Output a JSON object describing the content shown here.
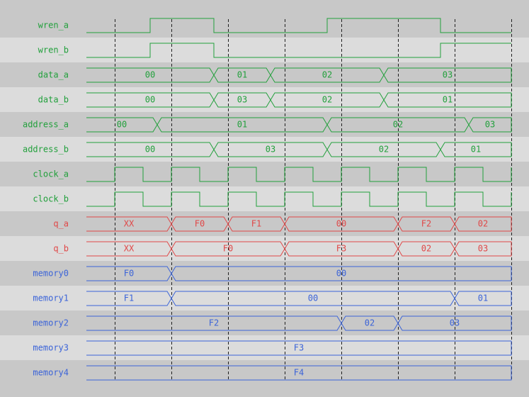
{
  "colors": {
    "control": "#22a03c",
    "output": "#e04848",
    "memory": "#3c64d8",
    "band_dark": "#c8c8c8",
    "band_light": "#dcdcdc",
    "grid": "#202020"
  },
  "time_end": 15,
  "gridlines": [
    1,
    3,
    5,
    7,
    9,
    11,
    13,
    15
  ],
  "signals": [
    {
      "name": "wren_a",
      "kind": "bit",
      "color": "control",
      "init": 0,
      "edges": [
        2.25,
        4.5,
        8.5,
        12.5
      ]
    },
    {
      "name": "wren_b",
      "kind": "bit",
      "color": "control",
      "init": 0,
      "edges": [
        2.25,
        4.5,
        12.5
      ]
    },
    {
      "name": "data_a",
      "kind": "bus",
      "color": "control",
      "segments": [
        {
          "start": 0,
          "end": 4.5,
          "value": "00"
        },
        {
          "start": 4.5,
          "end": 6.5,
          "value": "01"
        },
        {
          "start": 6.5,
          "end": 10.5,
          "value": "02"
        },
        {
          "start": 10.5,
          "end": 15,
          "value": "03"
        }
      ]
    },
    {
      "name": "data_b",
      "kind": "bus",
      "color": "control",
      "segments": [
        {
          "start": 0,
          "end": 4.5,
          "value": "00"
        },
        {
          "start": 4.5,
          "end": 6.5,
          "value": "03"
        },
        {
          "start": 6.5,
          "end": 10.5,
          "value": "02"
        },
        {
          "start": 10.5,
          "end": 15,
          "value": "01"
        }
      ]
    },
    {
      "name": "address_a",
      "kind": "bus",
      "color": "control",
      "segments": [
        {
          "start": 0,
          "end": 2.5,
          "value": "00"
        },
        {
          "start": 2.5,
          "end": 8.5,
          "value": "01"
        },
        {
          "start": 8.5,
          "end": 13.5,
          "value": "02"
        },
        {
          "start": 13.5,
          "end": 15,
          "value": "03"
        }
      ]
    },
    {
      "name": "address_b",
      "kind": "bus",
      "color": "control",
      "segments": [
        {
          "start": 0,
          "end": 4.5,
          "value": "00"
        },
        {
          "start": 4.5,
          "end": 8.5,
          "value": "03"
        },
        {
          "start": 8.5,
          "end": 12.5,
          "value": "02"
        },
        {
          "start": 12.5,
          "end": 15,
          "value": "01"
        }
      ]
    },
    {
      "name": "clock_a",
      "kind": "bit",
      "color": "control",
      "init": 0,
      "edges": [
        1,
        2,
        3,
        4,
        5,
        6,
        7,
        8,
        9,
        10,
        11,
        12,
        13,
        14,
        15
      ]
    },
    {
      "name": "clock_b",
      "kind": "bit",
      "color": "control",
      "init": 0,
      "edges": [
        1,
        2,
        3,
        4,
        5,
        6,
        7,
        8,
        9,
        10,
        11,
        12,
        13,
        14,
        15
      ]
    },
    {
      "name": "q_a",
      "kind": "bus",
      "color": "output",
      "segments": [
        {
          "start": 0,
          "end": 3,
          "value": "XX"
        },
        {
          "start": 3,
          "end": 5,
          "value": "F0"
        },
        {
          "start": 5,
          "end": 7,
          "value": "F1"
        },
        {
          "start": 7,
          "end": 11,
          "value": "00"
        },
        {
          "start": 11,
          "end": 13,
          "value": "F2"
        },
        {
          "start": 13,
          "end": 15,
          "value": "02"
        }
      ]
    },
    {
      "name": "q_b",
      "kind": "bus",
      "color": "output",
      "segments": [
        {
          "start": 0,
          "end": 3,
          "value": "XX"
        },
        {
          "start": 3,
          "end": 7,
          "value": "F0"
        },
        {
          "start": 7,
          "end": 11,
          "value": "F3"
        },
        {
          "start": 11,
          "end": 13,
          "value": "02"
        },
        {
          "start": 13,
          "end": 15,
          "value": "03"
        }
      ]
    },
    {
      "name": "memory0",
      "kind": "bus",
      "color": "memory",
      "segments": [
        {
          "start": 0,
          "end": 3,
          "value": "F0"
        },
        {
          "start": 3,
          "end": 15,
          "value": "00"
        }
      ]
    },
    {
      "name": "memory1",
      "kind": "bus",
      "color": "memory",
      "segments": [
        {
          "start": 0,
          "end": 3,
          "value": "F1"
        },
        {
          "start": 3,
          "end": 13,
          "value": "00"
        },
        {
          "start": 13,
          "end": 15,
          "value": "01"
        }
      ]
    },
    {
      "name": "memory2",
      "kind": "bus",
      "color": "memory",
      "segments": [
        {
          "start": 0,
          "end": 9,
          "value": "F2"
        },
        {
          "start": 9,
          "end": 11,
          "value": "02"
        },
        {
          "start": 11,
          "end": 15,
          "value": "03"
        }
      ]
    },
    {
      "name": "memory3",
      "kind": "bus",
      "color": "memory",
      "segments": [
        {
          "start": 0,
          "end": 15,
          "value": "F3"
        }
      ]
    },
    {
      "name": "memory4",
      "kind": "bus",
      "color": "memory",
      "segments": [
        {
          "start": 0,
          "end": 15,
          "value": "F4"
        }
      ]
    }
  ]
}
